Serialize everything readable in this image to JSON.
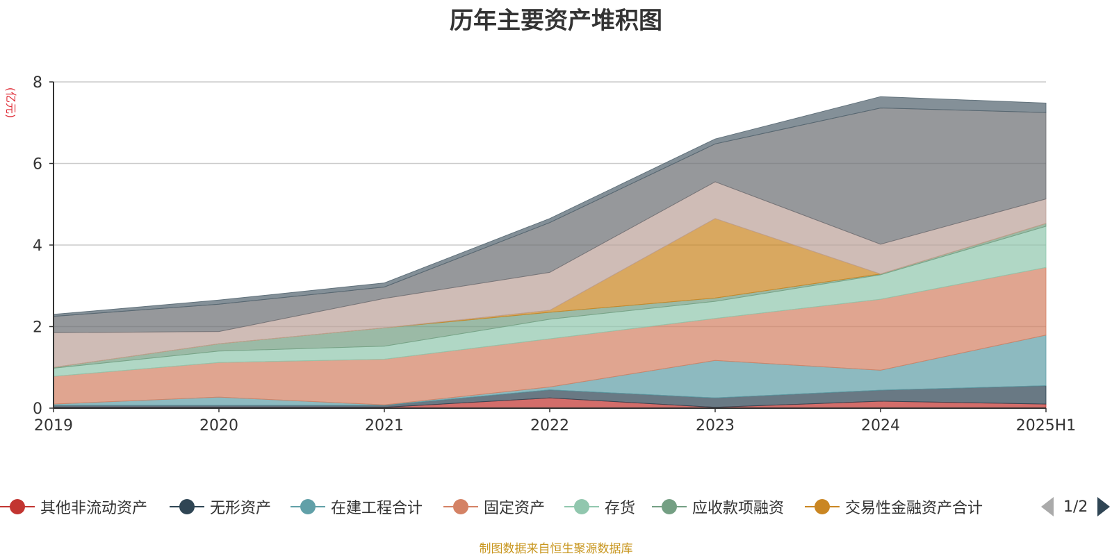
{
  "chart_data": {
    "type": "area",
    "stacked": true,
    "title": "历年主要资产堆积图",
    "ylabel": "(亿元)",
    "xlabel": "",
    "x": [
      "2019",
      "2020",
      "2021",
      "2022",
      "2023",
      "2024",
      "2025H1"
    ],
    "yticks": [
      "0",
      "2",
      "4",
      "6",
      "8"
    ],
    "ylim": [
      0,
      8
    ],
    "grid": true,
    "legend_position": "bottom",
    "series": [
      {
        "name": "其他非流动资产",
        "color": "#c23531",
        "values": [
          0.02,
          0.02,
          0.02,
          0.25,
          0.02,
          0.17,
          0.1
        ]
      },
      {
        "name": "无形资产",
        "color": "#2f4554",
        "values": [
          0.05,
          0.05,
          0.05,
          0.2,
          0.23,
          0.27,
          0.45
        ]
      },
      {
        "name": "在建工程合计",
        "color": "#61a0a8",
        "values": [
          0.03,
          0.2,
          0.01,
          0.07,
          0.92,
          0.49,
          1.24
        ]
      },
      {
        "name": "固定资产",
        "color": "#d48265",
        "values": [
          0.68,
          0.85,
          1.12,
          1.18,
          1.03,
          1.74,
          1.66
        ]
      },
      {
        "name": "存货",
        "color": "#91c7ae",
        "values": [
          0.2,
          0.28,
          0.32,
          0.48,
          0.42,
          0.6,
          1.01
        ]
      },
      {
        "name": "应收款项融资",
        "color": "#749f83",
        "values": [
          0.02,
          0.18,
          0.45,
          0.17,
          0.08,
          0.02,
          0.07
        ]
      },
      {
        "name": "交易性金融资产合计",
        "color": "#ca8622",
        "values": [
          0,
          0,
          0,
          0.05,
          1.95,
          0,
          0
        ]
      },
      {
        "name": "",
        "color": "#bda29a",
        "values": [
          0.85,
          0.3,
          0.72,
          0.93,
          0.9,
          0.73,
          0.6
        ]
      },
      {
        "name": "",
        "color": "#6e7074",
        "values": [
          0.4,
          0.67,
          0.28,
          1.22,
          0.93,
          3.34,
          2.12
        ]
      },
      {
        "name": "",
        "color": "#546570",
        "values": [
          0.05,
          0.1,
          0.1,
          0.1,
          0.12,
          0.28,
          0.23
        ]
      }
    ]
  },
  "legend": {
    "page": "1/2"
  },
  "footer": {
    "source": "制图数据来自恒生聚源数据库"
  }
}
